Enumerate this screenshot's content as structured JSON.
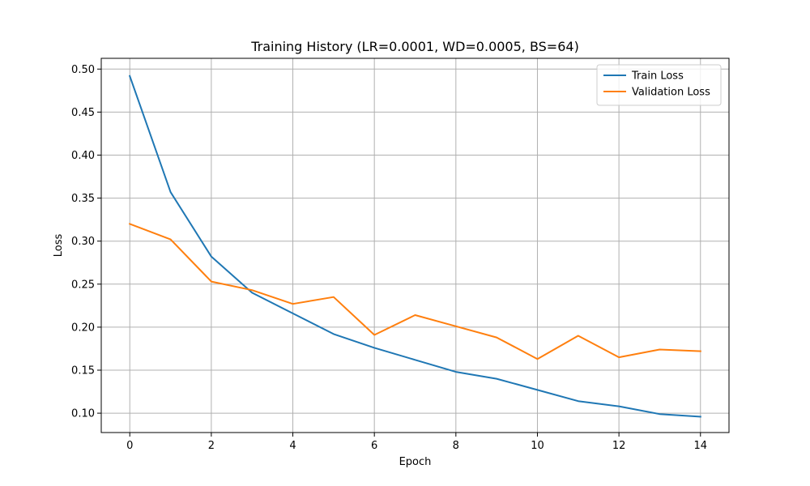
{
  "chart_data": {
    "type": "line",
    "title": "Training History (LR=0.0001, WD=0.0005, BS=64)",
    "xlabel": "Epoch",
    "ylabel": "Loss",
    "x": [
      0,
      1,
      2,
      3,
      4,
      5,
      6,
      7,
      8,
      9,
      10,
      11,
      12,
      13,
      14
    ],
    "xlim": [
      -0.7,
      14.7
    ],
    "ylim": [
      0.0775,
      0.5125
    ],
    "xticks": [
      0,
      2,
      4,
      6,
      8,
      10,
      12,
      14
    ],
    "xtick_labels": [
      "0",
      "2",
      "4",
      "6",
      "8",
      "10",
      "12",
      "14"
    ],
    "yticks": [
      0.1,
      0.15,
      0.2,
      0.25,
      0.3,
      0.35,
      0.4,
      0.45,
      0.5
    ],
    "ytick_labels": [
      "0.10",
      "0.15",
      "0.20",
      "0.25",
      "0.30",
      "0.35",
      "0.40",
      "0.45",
      "0.50"
    ],
    "grid": true,
    "legend_position": "top-right",
    "series": [
      {
        "name": "Train Loss",
        "color": "#1f77b4",
        "values": [
          0.492,
          0.357,
          0.282,
          0.24,
          0.216,
          0.192,
          0.176,
          0.162,
          0.148,
          0.14,
          0.127,
          0.114,
          0.108,
          0.099,
          0.096
        ]
      },
      {
        "name": "Validation Loss",
        "color": "#ff7f0e",
        "values": [
          0.32,
          0.302,
          0.253,
          0.243,
          0.227,
          0.235,
          0.191,
          0.214,
          0.201,
          0.188,
          0.163,
          0.19,
          0.165,
          0.174,
          0.172
        ]
      }
    ]
  }
}
